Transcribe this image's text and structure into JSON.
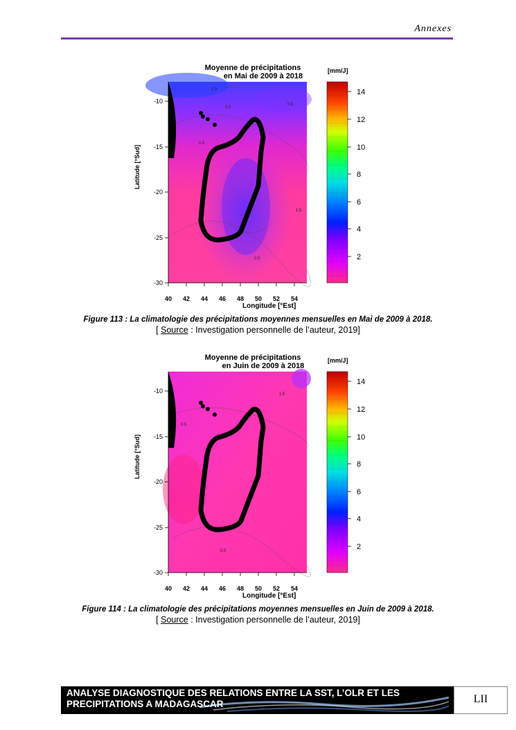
{
  "header": {
    "title": "Annexes"
  },
  "figures": [
    {
      "title_line1": "Moyenne de précipitations",
      "title_line2": "en Mai de 2009 à 2018",
      "unit": "[mm/J]",
      "xlabel": "Longitude [°Est]",
      "ylabel": "Latitude [°Sud]",
      "x_ticks": [
        "40",
        "42",
        "44",
        "46",
        "48",
        "50",
        "52",
        "54"
      ],
      "y_ticks": [
        "-10",
        "-15",
        "-20",
        "-25",
        "-30"
      ],
      "colorbar_ticks": [
        "14",
        "12",
        "10",
        "8",
        "6",
        "4",
        "2"
      ],
      "contour_labels": [
        "1.5",
        "1.5",
        "0.5",
        "0.5",
        "1.5",
        "2.5"
      ],
      "caption": "Figure 113 : La climatologie des précipitations moyennes mensuelles en Mai de 2009 à 2018.",
      "source_label": "Source",
      "source_text": " : Investigation personnelle de l’auteur, 2019]",
      "source_open": "[ "
    },
    {
      "title_line1": "Moyenne de précipitations",
      "title_line2": "en Juin de 2009 à 2018",
      "unit": "[mm/J]",
      "xlabel": "Longitude [°Est]",
      "ylabel": "Latitude [°Sud]",
      "x_ticks": [
        "40",
        "42",
        "44",
        "46",
        "48",
        "50",
        "52",
        "54"
      ],
      "y_ticks": [
        "-10",
        "-15",
        "-20",
        "-25",
        "-30"
      ],
      "colorbar_ticks": [
        "14",
        "12",
        "10",
        "8",
        "6",
        "4",
        "2"
      ],
      "contour_labels": [
        "1.5",
        "0.5",
        "0.5"
      ],
      "caption": "Figure 114 : La climatologie des précipitations moyennes mensuelles en Juin de 2009 à 2018.",
      "source_label": "Source",
      "source_text": " : Investigation personnelle de l’auteur, 2019]",
      "source_open": "[ "
    }
  ],
  "footer": {
    "line1": "ANALYSE DIAGNOSTIQUE DES RELATIONS ENTRE LA SST, L’OLR ET LES",
    "line2": "PRECIPITATIONS A MADAGASCAR",
    "page_number": "LII"
  },
  "colors": {
    "accent": "#7b3fa0"
  }
}
